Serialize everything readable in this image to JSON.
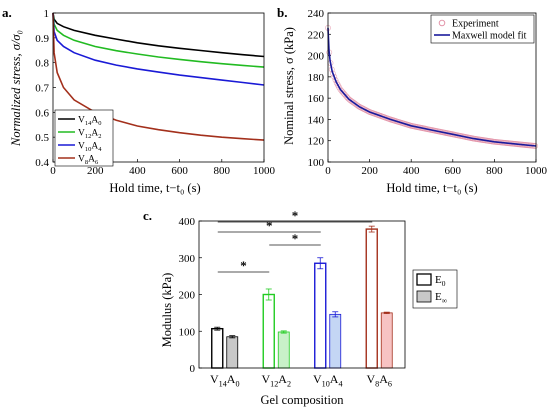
{
  "chart_data": [
    {
      "panel": "a.",
      "type": "line",
      "xlabel": "Hold time, t−t₀ (s)",
      "ylabel": "Normalized stress, σ/σ₀",
      "xlim": [
        0,
        1000
      ],
      "ylim": [
        0.4,
        1.0
      ],
      "xticks": [
        0,
        200,
        400,
        600,
        800,
        1000
      ],
      "yticks": [
        0.4,
        0.5,
        0.6,
        0.7,
        0.8,
        0.9,
        1.0
      ],
      "ytick_labels": [
        "0.4",
        "0.5",
        "0.6",
        "0.7",
        "0.8",
        "0.9",
        "1"
      ],
      "legend_position": "bottom-left",
      "x": [
        0,
        5,
        20,
        50,
        100,
        200,
        300,
        400,
        500,
        600,
        700,
        800,
        900,
        1000
      ],
      "series": [
        {
          "name": "V14A0",
          "base": "V",
          "sub1": "14",
          "mid": "A",
          "sub2": "0",
          "color": "#000000",
          "values": [
            1.0,
            0.975,
            0.958,
            0.945,
            0.93,
            0.91,
            0.895,
            0.88,
            0.868,
            0.858,
            0.849,
            0.84,
            0.832,
            0.825
          ]
        },
        {
          "name": "V12A2",
          "base": "V",
          "sub1": "12",
          "mid": "A",
          "sub2": "2",
          "color": "#22bb22",
          "values": [
            1.0,
            0.955,
            0.93,
            0.91,
            0.89,
            0.865,
            0.848,
            0.835,
            0.823,
            0.813,
            0.804,
            0.796,
            0.789,
            0.782
          ]
        },
        {
          "name": "V10A4",
          "base": "V",
          "sub1": "10",
          "mid": "A",
          "sub2": "4",
          "color": "#1a1ad6",
          "values": [
            1.0,
            0.925,
            0.89,
            0.865,
            0.84,
            0.81,
            0.79,
            0.775,
            0.762,
            0.75,
            0.74,
            0.73,
            0.72,
            0.71
          ]
        },
        {
          "name": "V8A6",
          "base": "V",
          "sub1": "8",
          "mid": "A",
          "sub2": "6",
          "color": "#a3301c",
          "values": [
            1.0,
            0.84,
            0.76,
            0.7,
            0.65,
            0.6,
            0.568,
            0.545,
            0.53,
            0.518,
            0.508,
            0.5,
            0.494,
            0.488
          ]
        }
      ]
    },
    {
      "panel": "b.",
      "type": "line",
      "xlabel": "Hold time, t−t₀ (s)",
      "ylabel": "Nominal stress, σ (kPa)",
      "xlim": [
        0,
        1000
      ],
      "ylim": [
        100,
        240
      ],
      "xticks": [
        0,
        200,
        400,
        600,
        800,
        1000
      ],
      "yticks": [
        100,
        120,
        140,
        160,
        180,
        200,
        220,
        240
      ],
      "legend_position": "top-right",
      "x": [
        0,
        5,
        10,
        20,
        40,
        60,
        100,
        150,
        200,
        300,
        400,
        500,
        600,
        700,
        800,
        900,
        1000
      ],
      "series": [
        {
          "name": "Experiment",
          "marker": "circle",
          "color": "#e08aa0",
          "values": [
            226,
            205,
            195,
            185,
            175,
            168,
            159,
            152,
            147,
            140,
            134,
            130,
            126,
            122,
            119,
            117,
            115
          ]
        },
        {
          "name": "Maxwell model fit",
          "marker": "line",
          "color": "#1a1a9c",
          "values": [
            226,
            205,
            195,
            185,
            175,
            168,
            159,
            152,
            147,
            140,
            134,
            130,
            126,
            122,
            119,
            117,
            115
          ]
        }
      ]
    },
    {
      "panel": "c.",
      "type": "bar",
      "xlabel": "Gel composition",
      "ylabel": "Modulus (kPa)",
      "ylim": [
        0,
        400
      ],
      "yticks": [
        0,
        100,
        200,
        300,
        400
      ],
      "categories": [
        {
          "name": "V14A0",
          "base": "V",
          "sub1": "14",
          "mid": "A",
          "sub2": "0",
          "color": "#000000",
          "light": "#c8c8c8"
        },
        {
          "name": "V12A2",
          "base": "V",
          "sub1": "12",
          "mid": "A",
          "sub2": "2",
          "color": "#22cc22",
          "light": "#c9f1c9"
        },
        {
          "name": "V10A4",
          "base": "V",
          "sub1": "10",
          "mid": "A",
          "sub2": "4",
          "color": "#1a1ad6",
          "light": "#c4d6f4"
        },
        {
          "name": "V8A6",
          "base": "V",
          "sub1": "8",
          "mid": "A",
          "sub2": "6",
          "color": "#a3301c",
          "light": "#f7c3c3"
        }
      ],
      "series": [
        {
          "name": "E0",
          "base": "E",
          "sub": "0",
          "fill": "outline",
          "values": [
            107,
            200,
            285,
            378
          ],
          "errors": [
            4,
            15,
            15,
            8
          ]
        },
        {
          "name": "E∞",
          "base": "E",
          "sub": "∞",
          "fill": "light",
          "values": [
            85,
            98,
            146,
            150
          ],
          "errors": [
            3,
            3,
            7,
            2
          ]
        }
      ],
      "significance": [
        {
          "from": 0,
          "to": 1,
          "label": "*"
        },
        {
          "from": 1,
          "to": 2,
          "label": "*"
        },
        {
          "from": 0,
          "to": 2,
          "label": "*"
        },
        {
          "from": 0,
          "to": 3,
          "label": "*"
        }
      ]
    }
  ]
}
